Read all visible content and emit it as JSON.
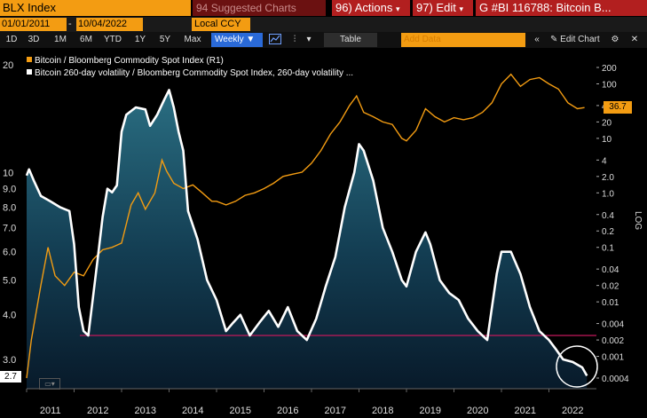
{
  "header": {
    "ticker": "BLX Index",
    "suggested": "Suggested Charts",
    "suggested_num": "94",
    "actions_num": "96)",
    "actions": "Actions",
    "edit_num": "97)",
    "edit": "Edit",
    "chart_title": "G #BI 116788: Bitcoin B..."
  },
  "dates": {
    "start": "01/01/2011",
    "end": "10/04/2022",
    "currency": "Local CCY"
  },
  "toolbar": {
    "periods": [
      "1D",
      "3D",
      "1M",
      "6M",
      "YTD",
      "1Y",
      "5Y",
      "Max"
    ],
    "frequency": "Weekly",
    "table_label": "Table",
    "add_data_placeholder": "Add Data",
    "edit_chart": "Edit Chart"
  },
  "legend": {
    "series1": "Bitcoin / Bloomberg Commodity Spot Index (R1)",
    "series2": "Bitcoin 260-day volatility / Bloomberg Commodity Spot Index, 260-day volatility ..."
  },
  "colors": {
    "series1": "#f39c12",
    "series2": "#ffffff",
    "refline": "#c2185b"
  },
  "tags": {
    "left_last": "2.7",
    "right_last": "36.7"
  },
  "chart_data": {
    "type": "line",
    "x_labels": [
      "2011",
      "2012",
      "2013",
      "2014",
      "2015",
      "2016",
      "2017",
      "2018",
      "2019",
      "2020",
      "2021",
      "2022"
    ],
    "left_axis": {
      "ticks": [
        "20",
        "10",
        "9.0",
        "8.0",
        "7.0",
        "6.0",
        "5.0",
        "4.0",
        "3.0"
      ],
      "scale": "log"
    },
    "right_axis": {
      "label": "LOG",
      "scale": "log",
      "ticks": [
        "200",
        "100",
        "40",
        "20",
        "10",
        "4",
        "2.0",
        "1.0",
        "0.4",
        "0.2",
        "0.1",
        "0.04",
        "0.02",
        "0.01",
        "0.004",
        "0.002",
        "0.001",
        "0.0004"
      ]
    },
    "reference_line_left": 3.5,
    "series": [
      {
        "name": "Bitcoin / Bloomberg Commodity Spot Index (R1)",
        "axis": "right",
        "x": [
          2011.0,
          2011.1,
          2011.3,
          2011.45,
          2011.6,
          2011.8,
          2012.0,
          2012.2,
          2012.4,
          2012.6,
          2012.8,
          2013.0,
          2013.2,
          2013.35,
          2013.5,
          2013.7,
          2013.85,
          2013.95,
          2014.1,
          2014.3,
          2014.5,
          2014.7,
          2014.9,
          2015.0,
          2015.2,
          2015.4,
          2015.6,
          2015.8,
          2016.0,
          2016.2,
          2016.4,
          2016.6,
          2016.8,
          2017.0,
          2017.2,
          2017.4,
          2017.6,
          2017.8,
          2017.95,
          2018.1,
          2018.3,
          2018.5,
          2018.7,
          2018.9,
          2019.0,
          2019.2,
          2019.4,
          2019.6,
          2019.8,
          2020.0,
          2020.2,
          2020.4,
          2020.6,
          2020.8,
          2021.0,
          2021.2,
          2021.4,
          2021.6,
          2021.8,
          2022.0,
          2022.2,
          2022.4,
          2022.6,
          2022.75
        ],
        "y": [
          0.0004,
          0.002,
          0.02,
          0.1,
          0.03,
          0.02,
          0.035,
          0.03,
          0.06,
          0.09,
          0.1,
          0.12,
          0.6,
          1.0,
          0.5,
          1.0,
          4.0,
          2.5,
          1.5,
          1.2,
          1.4,
          1.0,
          0.7,
          0.7,
          0.6,
          0.7,
          0.9,
          1.0,
          1.2,
          1.5,
          2.0,
          2.2,
          2.4,
          3.5,
          6.0,
          12.0,
          20.0,
          40.0,
          60.0,
          30.0,
          25.0,
          20.0,
          18.0,
          10.0,
          9.0,
          14.0,
          35.0,
          25.0,
          20.0,
          24.0,
          22.0,
          24.0,
          30.0,
          45.0,
          100.0,
          150.0,
          90.0,
          120.0,
          130.0,
          100.0,
          80.0,
          45.0,
          35.0,
          36.7
        ]
      },
      {
        "name": "Bitcoin 260-day volatility / Bloomberg Commodity Spot Index, 260-day volatility",
        "axis": "left",
        "x": [
          2011.0,
          2011.05,
          2011.15,
          2011.3,
          2011.5,
          2011.7,
          2011.9,
          2012.0,
          2012.1,
          2012.2,
          2012.3,
          2012.4,
          2012.5,
          2012.6,
          2012.7,
          2012.8,
          2012.9,
          2013.0,
          2013.1,
          2013.3,
          2013.5,
          2013.6,
          2013.75,
          2013.9,
          2014.0,
          2014.1,
          2014.2,
          2014.3,
          2014.4,
          2014.6,
          2014.8,
          2015.0,
          2015.2,
          2015.35,
          2015.5,
          2015.7,
          2015.9,
          2016.1,
          2016.3,
          2016.5,
          2016.7,
          2016.9,
          2017.1,
          2017.3,
          2017.5,
          2017.7,
          2017.9,
          2018.0,
          2018.1,
          2018.3,
          2018.5,
          2018.7,
          2018.9,
          2019.0,
          2019.2,
          2019.4,
          2019.5,
          2019.7,
          2019.9,
          2020.1,
          2020.3,
          2020.5,
          2020.7,
          2020.9,
          2021.0,
          2021.2,
          2021.4,
          2021.6,
          2021.8,
          2022.0,
          2022.15,
          2022.3,
          2022.5,
          2022.7,
          2022.8
        ],
        "y": [
          9.8,
          10.2,
          9.5,
          8.6,
          8.3,
          8.0,
          7.8,
          6.3,
          4.2,
          3.6,
          3.5,
          4.5,
          5.8,
          7.5,
          9.0,
          8.8,
          9.2,
          13.0,
          14.5,
          15.2,
          15.0,
          13.5,
          14.5,
          16.0,
          17.0,
          15.2,
          13.0,
          11.5,
          7.8,
          6.5,
          5.0,
          4.4,
          3.6,
          3.8,
          4.0,
          3.5,
          3.8,
          4.1,
          3.7,
          4.2,
          3.6,
          3.4,
          3.9,
          4.8,
          5.8,
          8.0,
          10.0,
          12.0,
          11.5,
          9.5,
          7.0,
          6.0,
          5.0,
          4.8,
          6.0,
          6.8,
          6.3,
          5.0,
          4.6,
          4.4,
          3.9,
          3.6,
          3.4,
          5.2,
          6.0,
          6.0,
          5.2,
          4.2,
          3.6,
          3.4,
          3.2,
          3.0,
          2.95,
          2.85,
          2.7
        ]
      }
    ]
  }
}
